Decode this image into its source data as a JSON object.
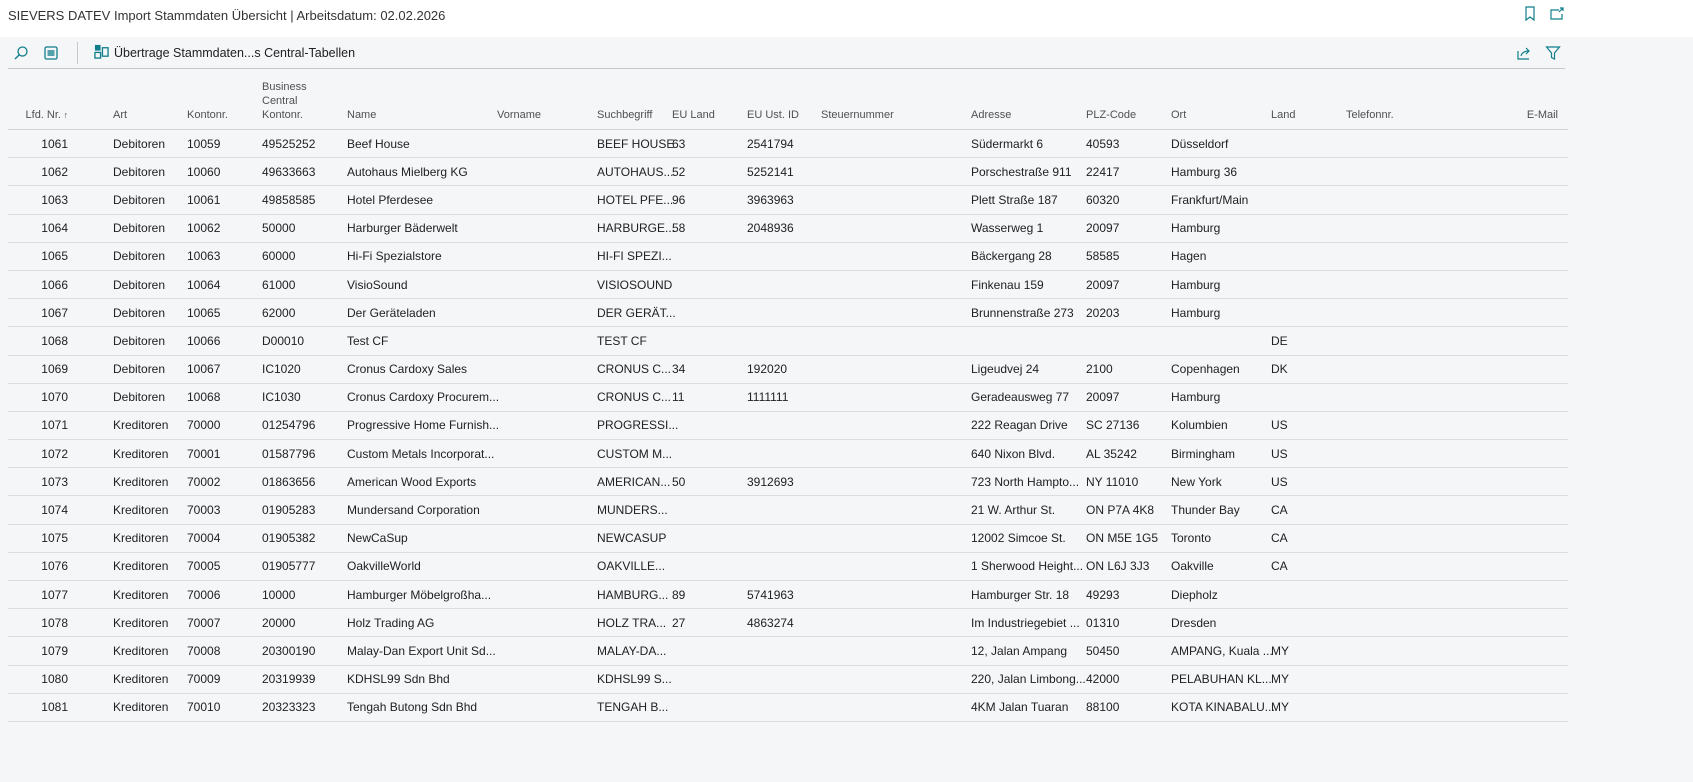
{
  "window": {
    "title": "SIEVERS DATEV Import Stammdaten Übersicht | Arbeitsdatum: 02.02.2026",
    "icons": [
      "bookmark-icon",
      "open-new-window-icon"
    ]
  },
  "toolbar": {
    "search_icon": "search-icon",
    "layout_icon": "layout-icon",
    "action_label": "Übertrage Stammdaten...s Central-Tabellen",
    "share_icon": "share-icon",
    "filter_icon": "filter-icon"
  },
  "colors": {
    "accent": "#0f7e8a",
    "background": "#f5f6f8"
  },
  "table": {
    "sort": {
      "column": "Lfd. Nr.",
      "direction": "ascending"
    },
    "columns": [
      "Lfd. Nr.",
      "Art",
      "Kontonr.",
      "Business Central Kontonr.",
      "Name",
      "Vorname",
      "Suchbegriff",
      "EU Land",
      "EU Ust. ID",
      "Steuernummer",
      "Adresse",
      "PLZ-Code",
      "Ort",
      "Land",
      "Telefonnr.",
      "E-Mail"
    ],
    "rows": [
      [
        "1061",
        "Debitoren",
        "10059",
        "49525252",
        "Beef House",
        "",
        "BEEF HOUSE",
        "63",
        "2541794",
        "",
        "Südermarkt 6",
        "40593",
        "Düsseldorf",
        "",
        "",
        ""
      ],
      [
        "1062",
        "Debitoren",
        "10060",
        "49633663",
        "Autohaus Mielberg KG",
        "",
        "AUTOHAUS...",
        "52",
        "5252141",
        "",
        "Porschestraße 911",
        "22417",
        "Hamburg 36",
        "",
        "",
        ""
      ],
      [
        "1063",
        "Debitoren",
        "10061",
        "49858585",
        "Hotel Pferdesee",
        "",
        "HOTEL PFE...",
        "96",
        "3963963",
        "",
        "Plett Straße 187",
        "60320",
        "Frankfurt/Main",
        "",
        "",
        ""
      ],
      [
        "1064",
        "Debitoren",
        "10062",
        "50000",
        "Harburger Bäderwelt",
        "",
        "HARBURGE...",
        "58",
        "2048936",
        "",
        "Wasserweg 1",
        "20097",
        "Hamburg",
        "",
        "",
        ""
      ],
      [
        "1065",
        "Debitoren",
        "10063",
        "60000",
        "Hi-Fi Spezialstore",
        "",
        "HI-FI SPEZI...",
        "",
        "",
        "",
        "Bäckergang 28",
        "58585",
        "Hagen",
        "",
        "",
        ""
      ],
      [
        "1066",
        "Debitoren",
        "10064",
        "61000",
        "VisioSound",
        "",
        "VISIOSOUND",
        "",
        "",
        "",
        "Finkenau 159",
        "20097",
        "Hamburg",
        "",
        "",
        ""
      ],
      [
        "1067",
        "Debitoren",
        "10065",
        "62000",
        "Der Geräteladen",
        "",
        "DER GERÄT...",
        "",
        "",
        "",
        "Brunnenstraße 273",
        "20203",
        "Hamburg",
        "",
        "",
        ""
      ],
      [
        "1068",
        "Debitoren",
        "10066",
        "D00010",
        "Test CF",
        "",
        "TEST CF",
        "",
        "",
        "",
        "",
        "",
        "",
        "DE",
        "",
        ""
      ],
      [
        "1069",
        "Debitoren",
        "10067",
        "IC1020",
        "Cronus Cardoxy Sales",
        "",
        "CRONUS C...",
        "34",
        "192020",
        "",
        "Ligeudvej 24",
        "2100",
        "Copenhagen",
        "DK",
        "",
        ""
      ],
      [
        "1070",
        "Debitoren",
        "10068",
        "IC1030",
        "Cronus Cardoxy Procurem...",
        "",
        "CRONUS C...",
        "11",
        "1111111",
        "",
        "Geradeausweg 77",
        "20097",
        "Hamburg",
        "",
        "",
        ""
      ],
      [
        "1071",
        "Kreditoren",
        "70000",
        "01254796",
        "Progressive Home Furnish...",
        "",
        "PROGRESSI...",
        "",
        "",
        "",
        "222 Reagan Drive",
        "SC 27136",
        "Kolumbien",
        "US",
        "",
        ""
      ],
      [
        "1072",
        "Kreditoren",
        "70001",
        "01587796",
        "Custom Metals Incorporat...",
        "",
        "CUSTOM M...",
        "",
        "",
        "",
        "640 Nixon Blvd.",
        "AL 35242",
        "Birmingham",
        "US",
        "",
        ""
      ],
      [
        "1073",
        "Kreditoren",
        "70002",
        "01863656",
        "American Wood Exports",
        "",
        "AMERICAN...",
        "50",
        "3912693",
        "",
        "723 North Hampto...",
        "NY 11010",
        "New York",
        "US",
        "",
        ""
      ],
      [
        "1074",
        "Kreditoren",
        "70003",
        "01905283",
        "Mundersand Corporation",
        "",
        "MUNDERS...",
        "",
        "",
        "",
        "21 W. Arthur St.",
        "ON P7A 4K8",
        "Thunder Bay",
        "CA",
        "",
        ""
      ],
      [
        "1075",
        "Kreditoren",
        "70004",
        "01905382",
        "NewCaSup",
        "",
        "NEWCASUP",
        "",
        "",
        "",
        "12002 Simcoe St.",
        "ON M5E 1G5",
        "Toronto",
        "CA",
        "",
        ""
      ],
      [
        "1076",
        "Kreditoren",
        "70005",
        "01905777",
        "OakvilleWorld",
        "",
        "OAKVILLE...",
        "",
        "",
        "",
        "1 Sherwood Height...",
        "ON L6J 3J3",
        "Oakville",
        "CA",
        "",
        ""
      ],
      [
        "1077",
        "Kreditoren",
        "70006",
        "10000",
        "Hamburger Möbelgroßha...",
        "",
        "HAMBURG...",
        "89",
        "5741963",
        "",
        "Hamburger Str. 18",
        "49293",
        "Diepholz",
        "",
        "",
        ""
      ],
      [
        "1078",
        "Kreditoren",
        "70007",
        "20000",
        "Holz Trading AG",
        "",
        "HOLZ TRA...",
        "27",
        "4863274",
        "",
        "Im Industriegebiet ...",
        "01310",
        "Dresden",
        "",
        "",
        ""
      ],
      [
        "1079",
        "Kreditoren",
        "70008",
        "20300190",
        "Malay-Dan Export Unit Sd...",
        "",
        "MALAY-DA...",
        "",
        "",
        "",
        "12, Jalan Ampang",
        "50450",
        "AMPANG, Kuala ...",
        "MY",
        "",
        ""
      ],
      [
        "1080",
        "Kreditoren",
        "70009",
        "20319939",
        "KDHSL99 Sdn Bhd",
        "",
        "KDHSL99 S...",
        "",
        "",
        "",
        "220, Jalan Limbong...",
        "42000",
        "PELABUHAN KL...",
        "MY",
        "",
        ""
      ],
      [
        "1081",
        "Kreditoren",
        "70010",
        "20323323",
        "Tengah Butong Sdn Bhd",
        "",
        "TENGAH B...",
        "",
        "",
        "",
        "4KM Jalan Tuaran",
        "88100",
        "KOTA KINABALU...",
        "MY",
        "",
        ""
      ]
    ]
  }
}
